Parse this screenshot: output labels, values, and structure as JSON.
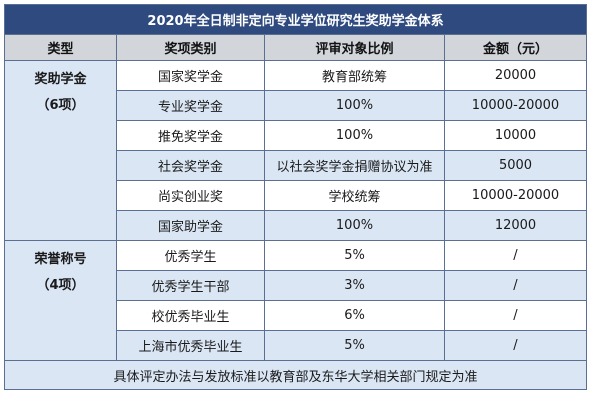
{
  "title": "2020年全日制非定向专业学位研究生奖助学金体系",
  "headers": [
    "类型",
    "奖项类别",
    "评审对象比例",
    "金额（元）"
  ],
  "groups": [
    {
      "name": "奖助学金",
      "count": "（6项）",
      "rows": [
        {
          "category": "国家奖学金",
          "ratio": "教育部统筹",
          "amount": "20000"
        },
        {
          "category": "专业奖学金",
          "ratio": "100%",
          "amount": "10000-20000"
        },
        {
          "category": "推免奖学金",
          "ratio": "100%",
          "amount": "10000"
        },
        {
          "category": "社会奖学金",
          "ratio": "以社会奖学金捐赠协议为准",
          "amount": "5000"
        },
        {
          "category": "尚实创业奖",
          "ratio": "学校统筹",
          "amount": "10000-20000"
        },
        {
          "category": "国家助学金",
          "ratio": "100%",
          "amount": "12000"
        }
      ]
    },
    {
      "name": "荣誉称号",
      "count": "（4项）",
      "rows": [
        {
          "category": "优秀学生",
          "ratio": "5%",
          "amount": "/"
        },
        {
          "category": "优秀学生干部",
          "ratio": "3%",
          "amount": "/"
        },
        {
          "category": "校优秀毕业生",
          "ratio": "6%",
          "amount": "/"
        },
        {
          "category": "上海市优秀毕业生",
          "ratio": "5%",
          "amount": "/"
        }
      ]
    }
  ],
  "footer": "具体评定办法与发放标准以教育部及东华大学相关部门规定为准",
  "colors": {
    "title_bg": "#2e4a7f",
    "header_bg": "#d2d6db",
    "band_bg": "#dbe6f5",
    "border": "#5b6f92"
  }
}
